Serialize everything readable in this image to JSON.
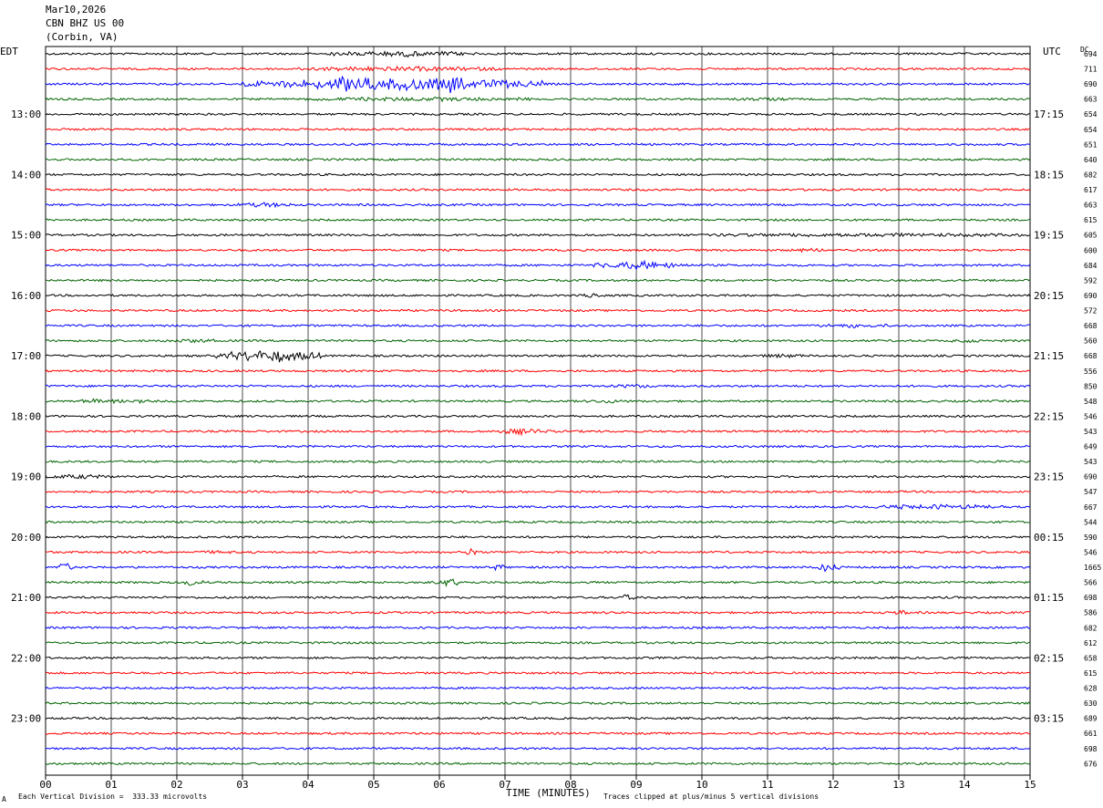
{
  "header": {
    "date": "Mar10,2026",
    "station": "CBN BHZ US 00",
    "location": "(Corbin, VA)"
  },
  "labels": {
    "left_zone": "EDT",
    "right_zone": "UTC",
    "dc_label": "DC",
    "xlabel": "TIME (MINUTES)",
    "scale_note": "Each Vertical Division =  333.33 microvolts",
    "clip_note": "Traces clipped at plus/minus 5 vertical divisions",
    "corner_mark": "A"
  },
  "colors": {
    "trace_cycle": [
      "#000000",
      "#ff0000",
      "#0000ff",
      "#006400"
    ],
    "grid": "#000000"
  },
  "chart_data": {
    "type": "line",
    "title": "",
    "xlabel": "TIME (MINUTES)",
    "xlim": [
      0,
      15
    ],
    "x_ticks": [
      "00",
      "01",
      "02",
      "03",
      "04",
      "05",
      "06",
      "07",
      "08",
      "09",
      "10",
      "11",
      "12",
      "13",
      "14",
      "15"
    ],
    "left_time_labels": [
      {
        "row": 4,
        "label": "13:00"
      },
      {
        "row": 8,
        "label": "14:00"
      },
      {
        "row": 12,
        "label": "15:00"
      },
      {
        "row": 16,
        "label": "16:00"
      },
      {
        "row": 20,
        "label": "17:00"
      },
      {
        "row": 24,
        "label": "18:00"
      },
      {
        "row": 28,
        "label": "19:00"
      },
      {
        "row": 32,
        "label": "20:00"
      },
      {
        "row": 36,
        "label": "21:00"
      },
      {
        "row": 40,
        "label": "22:00"
      },
      {
        "row": 44,
        "label": "23:00"
      }
    ],
    "right_time_labels": [
      {
        "row": 4,
        "label": "17:15"
      },
      {
        "row": 8,
        "label": "18:15"
      },
      {
        "row": 12,
        "label": "19:15"
      },
      {
        "row": 16,
        "label": "20:15"
      },
      {
        "row": 20,
        "label": "21:15"
      },
      {
        "row": 24,
        "label": "22:15"
      },
      {
        "row": 28,
        "label": "23:15"
      },
      {
        "row": 32,
        "label": "00:15"
      },
      {
        "row": 36,
        "label": "01:15"
      },
      {
        "row": 40,
        "label": "02:15"
      },
      {
        "row": 44,
        "label": "03:15"
      }
    ],
    "dc_values": [
      "694",
      "711",
      "690",
      "663",
      "654",
      "654",
      "651",
      "640",
      "682",
      "617",
      "663",
      "615",
      "605",
      "600",
      "684",
      "592",
      "690",
      "572",
      "668",
      "560",
      "668",
      "556",
      "850",
      "548",
      "546",
      "543",
      "649",
      "543",
      "690",
      "547",
      "667",
      "544",
      "590",
      "546",
      "1665",
      "566",
      "698",
      "586",
      "682",
      "612",
      "658",
      "615",
      "628",
      "630",
      "689",
      "661",
      "698",
      "676"
    ],
    "rows": 48,
    "events": [
      {
        "row": 2,
        "start": 3.0,
        "end": 7.6,
        "amp": 6.0
      },
      {
        "row": 2,
        "start": 4.4,
        "end": 4.7,
        "amp": 14.0
      },
      {
        "row": 2,
        "start": 5.9,
        "end": 6.4,
        "amp": 9.0
      },
      {
        "row": 0,
        "start": 4.3,
        "end": 6.6,
        "amp": 3.0
      },
      {
        "row": 1,
        "start": 3.8,
        "end": 7.0,
        "amp": 2.5
      },
      {
        "row": 3,
        "start": 4.0,
        "end": 7.4,
        "amp": 2.2
      },
      {
        "row": 3,
        "start": 10.5,
        "end": 11.3,
        "amp": 1.8
      },
      {
        "row": 10,
        "start": 2.9,
        "end": 3.8,
        "amp": 2.5
      },
      {
        "row": 12,
        "start": 10.0,
        "end": 15.0,
        "amp": 2.0
      },
      {
        "row": 13,
        "start": 11.4,
        "end": 11.9,
        "amp": 2.2
      },
      {
        "row": 14,
        "start": 8.3,
        "end": 9.8,
        "amp": 4.0
      },
      {
        "row": 16,
        "start": 8.1,
        "end": 8.5,
        "amp": 2.5
      },
      {
        "row": 18,
        "start": 11.8,
        "end": 12.9,
        "amp": 2.2
      },
      {
        "row": 19,
        "start": 1.8,
        "end": 2.6,
        "amp": 2.5
      },
      {
        "row": 19,
        "start": 13.8,
        "end": 14.3,
        "amp": 2.0
      },
      {
        "row": 20,
        "start": 2.6,
        "end": 4.2,
        "amp": 6.0
      },
      {
        "row": 20,
        "start": 10.9,
        "end": 11.6,
        "amp": 2.2
      },
      {
        "row": 22,
        "start": 8.6,
        "end": 9.4,
        "amp": 2.0
      },
      {
        "row": 23,
        "start": 0.5,
        "end": 1.6,
        "amp": 2.5
      },
      {
        "row": 23,
        "start": 8.2,
        "end": 8.9,
        "amp": 2.0
      },
      {
        "row": 25,
        "start": 6.8,
        "end": 7.7,
        "amp": 3.0
      },
      {
        "row": 28,
        "start": 0.0,
        "end": 1.0,
        "amp": 2.5
      },
      {
        "row": 30,
        "start": 12.5,
        "end": 14.6,
        "amp": 2.5
      },
      {
        "row": 33,
        "start": 6.4,
        "end": 6.6,
        "amp": 5.0
      },
      {
        "row": 33,
        "start": 2.3,
        "end": 2.9,
        "amp": 1.8
      },
      {
        "row": 34,
        "start": 0.2,
        "end": 0.4,
        "amp": 5.0
      },
      {
        "row": 34,
        "start": 6.8,
        "end": 7.0,
        "amp": 4.0
      },
      {
        "row": 34,
        "start": 11.7,
        "end": 12.1,
        "amp": 4.0
      },
      {
        "row": 35,
        "start": 2.1,
        "end": 2.4,
        "amp": 4.0
      },
      {
        "row": 35,
        "start": 5.9,
        "end": 6.4,
        "amp": 4.0
      },
      {
        "row": 36,
        "start": 8.7,
        "end": 9.0,
        "amp": 3.0
      },
      {
        "row": 37,
        "start": 12.9,
        "end": 13.2,
        "amp": 3.0
      },
      {
        "row": 37,
        "start": 8.5,
        "end": 8.7,
        "amp": 1.8
      }
    ]
  }
}
